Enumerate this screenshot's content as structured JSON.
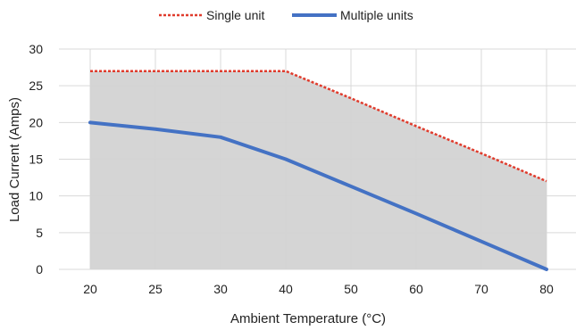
{
  "chart_data": {
    "type": "line",
    "xlabel": "Ambient Temperature (°C)",
    "ylabel": "Load Current (Amps)",
    "x": [
      20,
      25,
      30,
      40,
      50,
      60,
      70,
      80
    ],
    "xlim": [
      20,
      80
    ],
    "ylim": [
      0,
      30
    ],
    "yticks": [
      0,
      5,
      10,
      15,
      20,
      25,
      30
    ],
    "grid": true,
    "legend_position": "top-center",
    "series": [
      {
        "name": "Single unit",
        "style": "dotted",
        "color": "#e03c2d",
        "fill": "#d3d3d3",
        "points": [
          [
            20,
            27
          ],
          [
            25,
            27
          ],
          [
            30,
            27
          ],
          [
            40,
            27
          ],
          [
            50,
            23.3
          ],
          [
            60,
            19.5
          ],
          [
            70,
            15.8
          ],
          [
            80,
            12
          ]
        ]
      },
      {
        "name": "Multiple units",
        "style": "solid",
        "color": "#4472c4",
        "points": [
          [
            20,
            20
          ],
          [
            25,
            19.1
          ],
          [
            30,
            18
          ],
          [
            40,
            15
          ],
          [
            50,
            11.3
          ],
          [
            60,
            7.6
          ],
          [
            70,
            3.8
          ],
          [
            80,
            0
          ]
        ]
      }
    ]
  }
}
